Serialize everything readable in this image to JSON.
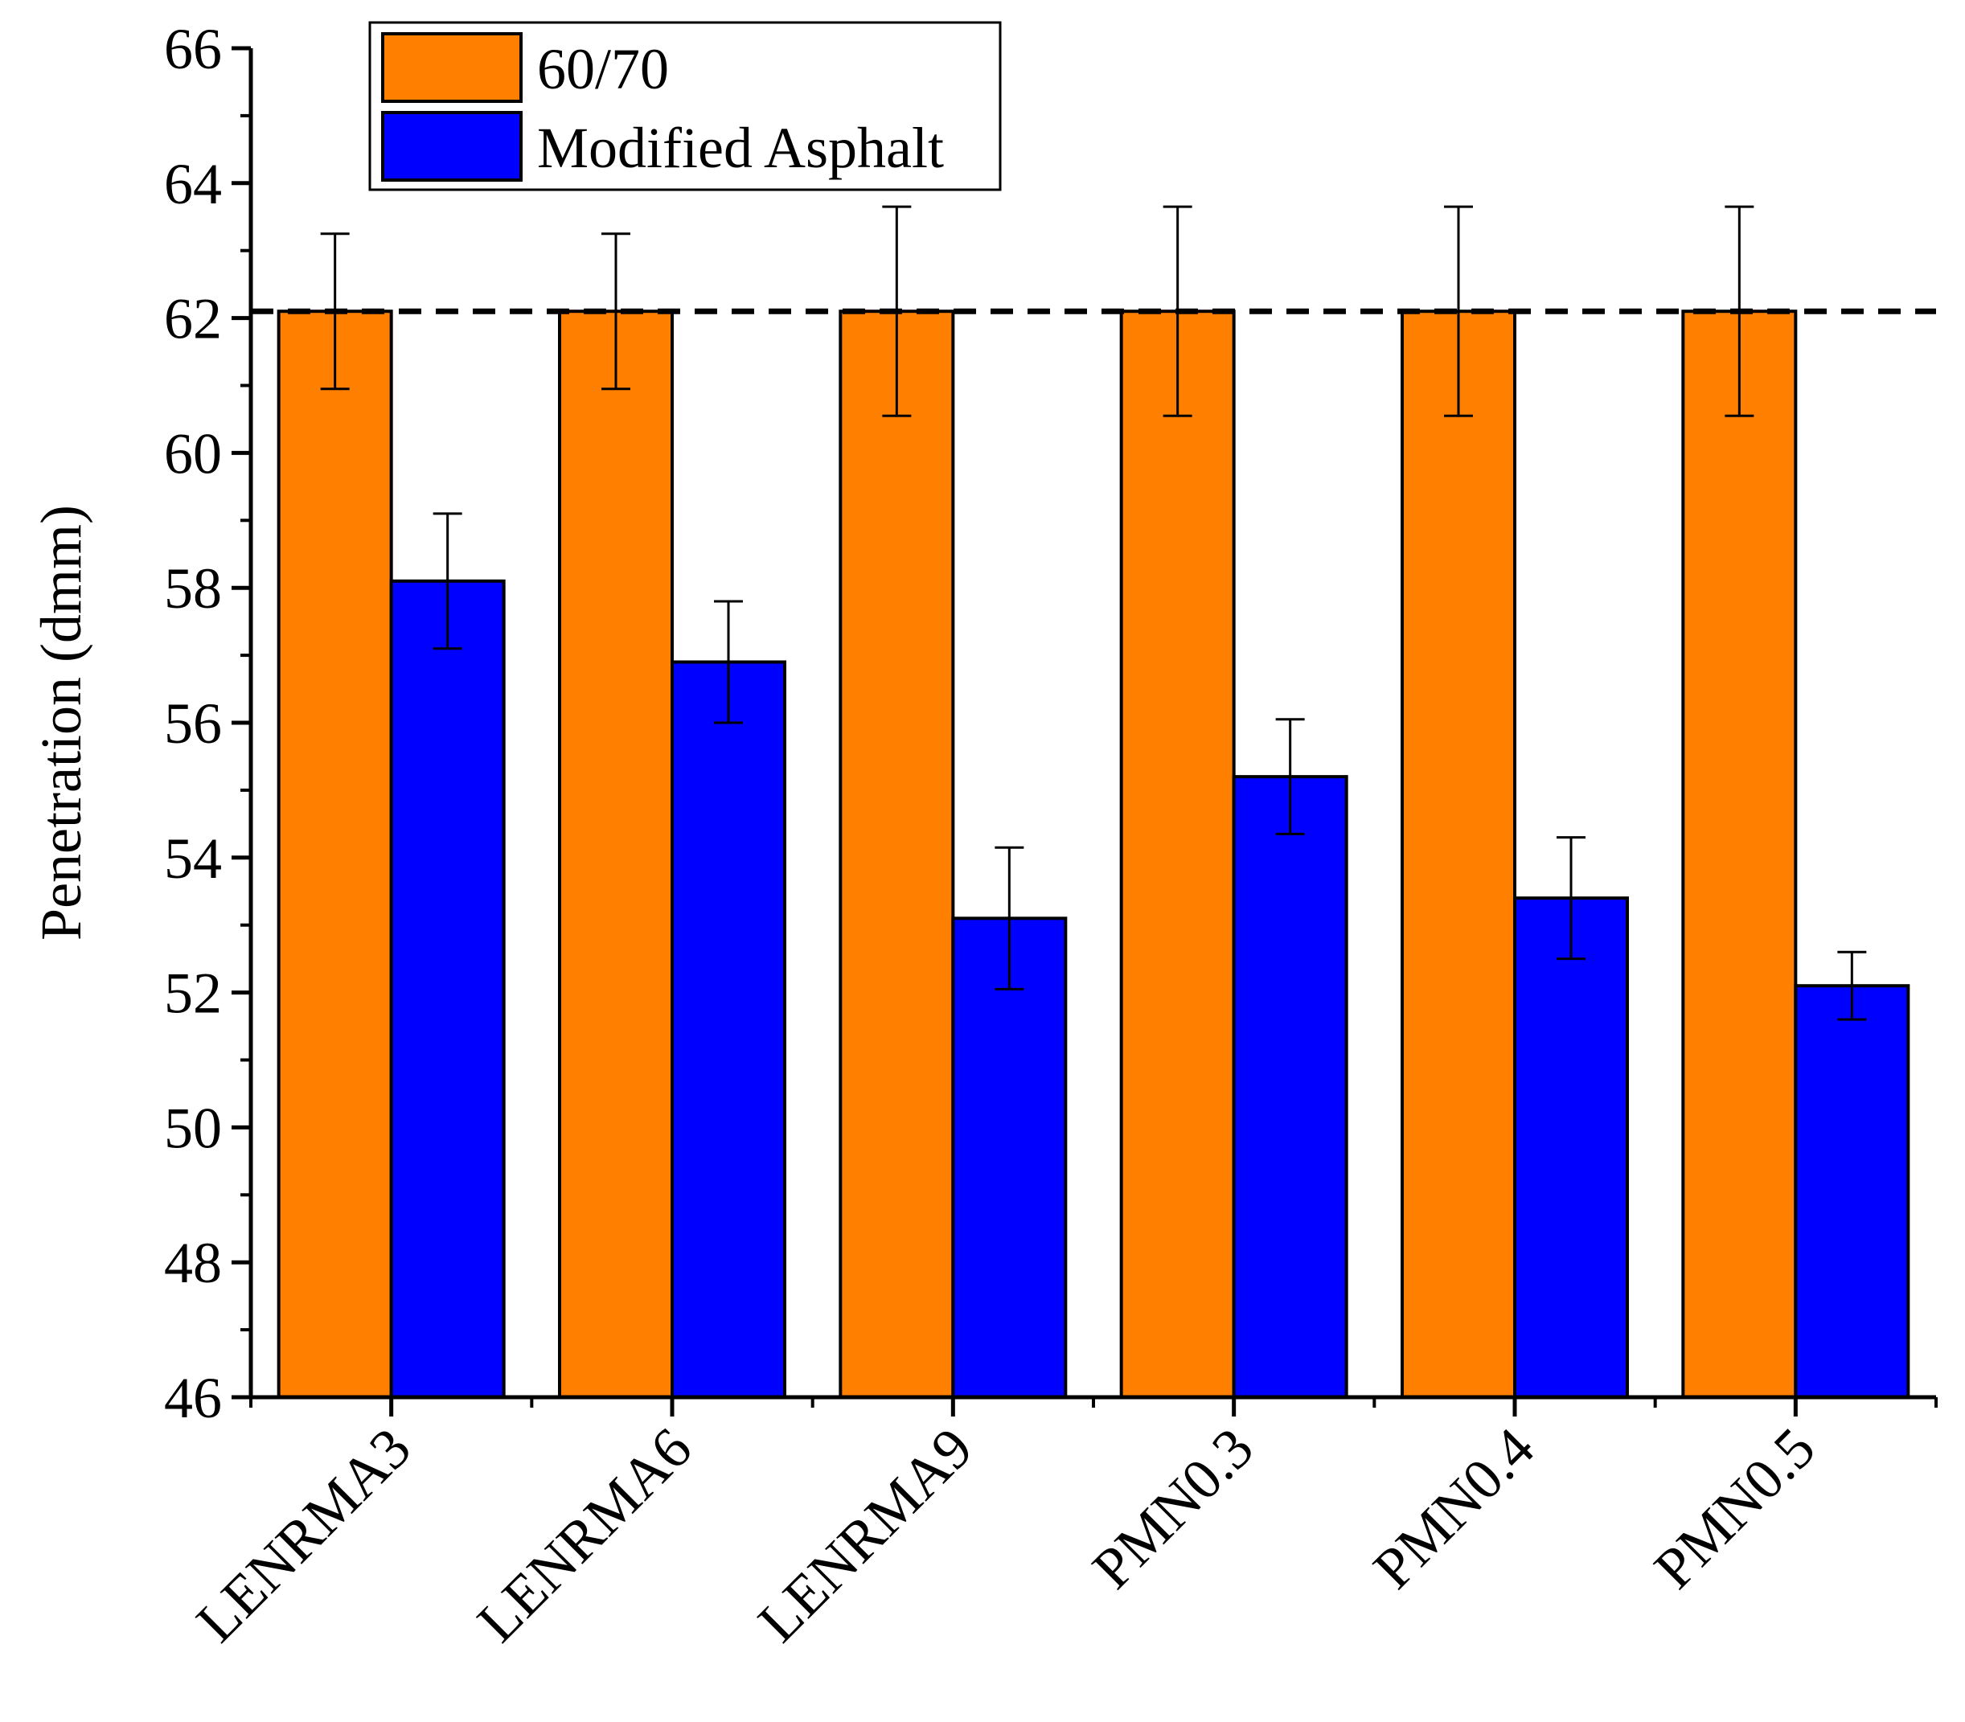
{
  "chart_data": {
    "type": "bar",
    "title": "",
    "xlabel": "",
    "ylabel": "Penetration (dmm)",
    "ylim": [
      46,
      66
    ],
    "yticks": [
      46,
      48,
      50,
      52,
      54,
      56,
      58,
      60,
      62,
      64,
      66
    ],
    "categories": [
      "LENRMA3",
      "LENRMA6",
      "LENRMA9",
      "PMN0.3",
      "PMN0.4",
      "PMN0.5"
    ],
    "series": [
      {
        "name": "60/70",
        "color": "#FF8000",
        "values": [
          62.1,
          62.1,
          62.1,
          62.1,
          62.1,
          62.1
        ],
        "error_low": [
          60.95,
          60.95,
          60.55,
          60.55,
          60.55,
          60.55
        ],
        "error_high": [
          63.25,
          63.25,
          63.65,
          63.65,
          63.65,
          63.65
        ]
      },
      {
        "name": "Modified Asphalt",
        "color": "#0000FF",
        "values": [
          58.1,
          56.9,
          53.1,
          55.2,
          53.4,
          52.1
        ],
        "error_low": [
          57.1,
          56.0,
          52.05,
          54.35,
          52.5,
          51.6
        ],
        "error_high": [
          59.1,
          57.8,
          54.15,
          56.05,
          54.3,
          52.6
        ]
      }
    ],
    "reference_line": {
      "value": 62.1,
      "style": "dashed"
    },
    "legend_position": "top-left",
    "grid": false
  }
}
